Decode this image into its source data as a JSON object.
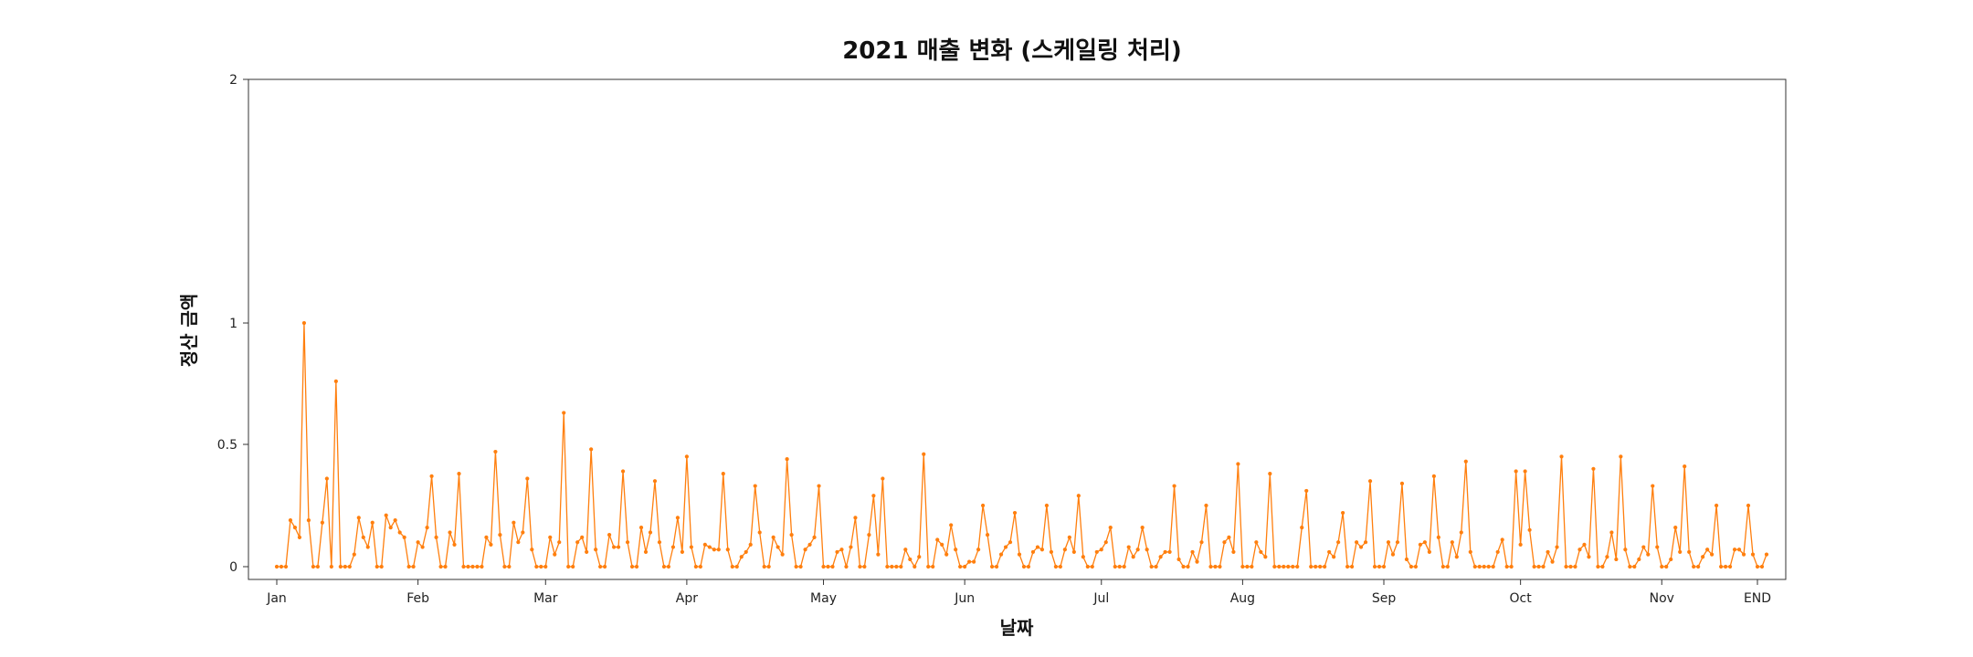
{
  "chart_data": {
    "type": "line",
    "title": "2021 매출 변화 (스케일링 처리)",
    "xlabel": "날짜",
    "ylabel": "정산 금액",
    "color": "#ff7f0e",
    "grid": false,
    "legend": "none",
    "y_scale": "custom-piecewise",
    "ylim": [
      0,
      2
    ],
    "y_ticks": [
      0,
      0.5,
      1,
      2
    ],
    "y_tick_labels": [
      "0",
      "0.5",
      "1",
      "2"
    ],
    "x_ticks": [
      {
        "index": 0,
        "label": "Jan"
      },
      {
        "index": 31,
        "label": "Feb"
      },
      {
        "index": 59,
        "label": "Mar"
      },
      {
        "index": 90,
        "label": "Apr"
      },
      {
        "index": 120,
        "label": "May"
      },
      {
        "index": 151,
        "label": "Jun"
      },
      {
        "index": 181,
        "label": "Jul"
      },
      {
        "index": 212,
        "label": "Aug"
      },
      {
        "index": 243,
        "label": "Sep"
      },
      {
        "index": 273,
        "label": "Oct"
      },
      {
        "index": 304,
        "label": "Nov"
      },
      {
        "index": 325,
        "label": "END"
      }
    ],
    "series": [
      {
        "values": [
          0,
          0,
          0,
          0.19,
          0.16,
          0.12,
          1.0,
          0.19,
          0,
          0,
          0.18,
          0.36,
          0,
          0.76,
          0,
          0,
          0,
          0.05,
          0.2,
          0.12,
          0.08,
          0.18,
          0,
          0,
          0.21,
          0.16,
          0.19,
          0.14,
          0.12,
          0,
          0,
          0.1,
          0.08,
          0.16,
          0.37,
          0.12,
          0,
          0,
          0.14,
          0.09,
          0.38,
          0,
          0,
          0,
          0,
          0,
          0.12,
          0.09,
          0.47,
          0.13,
          0,
          0,
          0.18,
          0.1,
          0.14,
          0.36,
          0.07,
          0,
          0,
          0,
          0.12,
          0.05,
          0.1,
          0.63,
          0,
          0,
          0.1,
          0.12,
          0.06,
          0.48,
          0.07,
          0,
          0,
          0.13,
          0.08,
          0.08,
          0.39,
          0.1,
          0,
          0,
          0.16,
          0.06,
          0.14,
          0.35,
          0.1,
          0,
          0,
          0.08,
          0.2,
          0.06,
          0.45,
          0.08,
          0,
          0,
          0.09,
          0.08,
          0.07,
          0.07,
          0.38,
          0.07,
          0,
          0,
          0.04,
          0.06,
          0.09,
          0.33,
          0.14,
          0,
          0,
          0.12,
          0.08,
          0.05,
          0.44,
          0.13,
          0,
          0,
          0.07,
          0.09,
          0.12,
          0.33,
          0,
          0,
          0,
          0.06,
          0.07,
          0,
          0.08,
          0.2,
          0,
          0,
          0.13,
          0.29,
          0.05,
          0.36,
          0,
          0,
          0,
          0,
          0.07,
          0.03,
          0,
          0.04,
          0.46,
          0,
          0,
          0.11,
          0.09,
          0.05,
          0.17,
          0.07,
          0,
          0,
          0.02,
          0.02,
          0.07,
          0.25,
          0.13,
          0,
          0,
          0.05,
          0.08,
          0.1,
          0.22,
          0.05,
          0,
          0,
          0.06,
          0.08,
          0.07,
          0.25,
          0.06,
          0,
          0,
          0.07,
          0.12,
          0.06,
          0.29,
          0.04,
          0,
          0,
          0.06,
          0.07,
          0.1,
          0.16,
          0,
          0,
          0,
          0.08,
          0.04,
          0.07,
          0.16,
          0.07,
          0,
          0,
          0.04,
          0.06,
          0.06,
          0.33,
          0.03,
          0,
          0,
          0.06,
          0.02,
          0.1,
          0.25,
          0,
          0,
          0,
          0.1,
          0.12,
          0.06,
          0.42,
          0,
          0,
          0,
          0.1,
          0.06,
          0.04,
          0.38,
          0,
          0,
          0,
          0,
          0,
          0,
          0.16,
          0.31,
          0,
          0,
          0,
          0,
          0.06,
          0.04,
          0.1,
          0.22,
          0,
          0,
          0.1,
          0.08,
          0.1,
          0.35,
          0,
          0,
          0,
          0.1,
          0.05,
          0.1,
          0.34,
          0.03,
          0,
          0,
          0.09,
          0.1,
          0.06,
          0.37,
          0.12,
          0,
          0,
          0.1,
          0.04,
          0.14,
          0.43,
          0.06,
          0,
          0,
          0,
          0,
          0,
          0.06,
          0.11,
          0,
          0,
          0.39,
          0.09,
          0.39,
          0.15,
          0,
          0,
          0,
          0.06,
          0.02,
          0.08,
          0.45,
          0,
          0,
          0,
          0.07,
          0.09,
          0.04,
          0.4,
          0,
          0,
          0.04,
          0.14,
          0.03,
          0.45,
          0.07,
          0,
          0,
          0.03,
          0.08,
          0.05,
          0.33,
          0.08,
          0,
          0,
          0.03,
          0.16,
          0.06,
          0.41,
          0.06,
          0,
          0,
          0.04,
          0.07,
          0.05,
          0.25,
          0,
          0,
          0,
          0.07,
          0.07,
          0.05,
          0.25,
          0.05,
          0,
          0,
          0.05
        ]
      }
    ]
  }
}
